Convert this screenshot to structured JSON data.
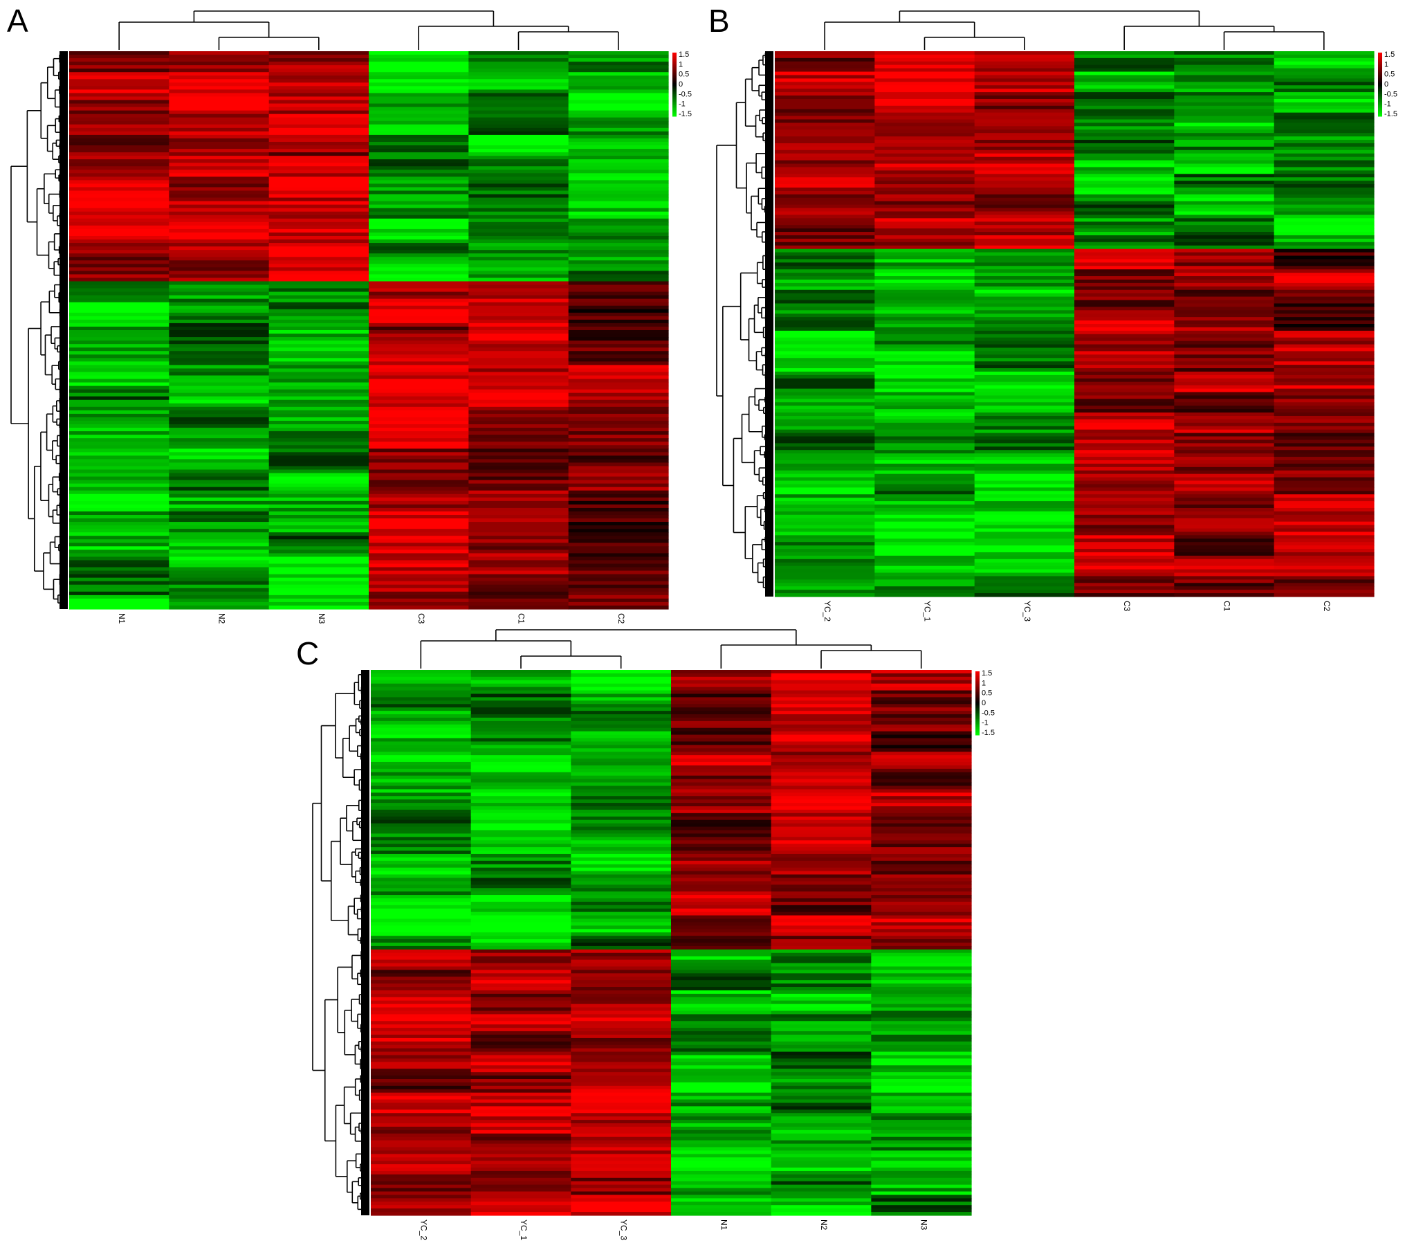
{
  "figure": {
    "colors": {
      "high": "#ff0000",
      "mid": "#000000",
      "low": "#00ff00",
      "tree": "#000000"
    }
  },
  "chart_data": [
    {
      "type": "heatmap",
      "panel_label": "A",
      "columns": [
        "N1",
        "N2",
        "N3",
        "C3",
        "C1",
        "C2"
      ],
      "column_groups": [
        [
          "N1",
          "N2",
          "N3"
        ],
        [
          "C3",
          "C1",
          "C2"
        ]
      ],
      "row_clusters": [
        {
          "fraction": 0.41,
          "mean_values": [
            1.0,
            1.1,
            1.0,
            -1.0,
            -1.0,
            -1.1
          ]
        },
        {
          "fraction": 0.59,
          "mean_values": [
            -1.0,
            -0.9,
            -1.0,
            1.1,
            0.9,
            0.7
          ]
        }
      ],
      "color_scale": {
        "min": -1.5,
        "max": 1.5,
        "tick_labels": [
          "1.5",
          "1",
          "0.5",
          "0",
          "-0.5",
          "-1",
          "-1.5"
        ]
      }
    },
    {
      "type": "heatmap",
      "panel_label": "B",
      "columns": [
        "YC_2",
        "YC_1",
        "YC_3",
        "C3",
        "C1",
        "C2"
      ],
      "column_groups": [
        [
          "YC_2",
          "YC_1",
          "YC_3"
        ],
        [
          "C3",
          "C1",
          "C2"
        ]
      ],
      "row_clusters": [
        {
          "fraction": 0.36,
          "mean_values": [
            0.9,
            1.1,
            1.0,
            -0.9,
            -1.0,
            -1.0
          ]
        },
        {
          "fraction": 0.64,
          "mean_values": [
            -1.0,
            -1.1,
            -0.9,
            1.0,
            0.9,
            0.8
          ]
        }
      ],
      "color_scale": {
        "min": -1.5,
        "max": 1.5,
        "tick_labels": [
          "1.5",
          "1",
          "0.5",
          "0",
          "-0.5",
          "-1",
          "-1.5"
        ]
      }
    },
    {
      "type": "heatmap",
      "panel_label": "C",
      "columns": [
        "YC_2",
        "YC_1",
        "YC_3",
        "N1",
        "N2",
        "N3"
      ],
      "column_groups": [
        [
          "YC_2",
          "YC_1",
          "YC_3"
        ],
        [
          "N1",
          "N2",
          "N3"
        ]
      ],
      "row_clusters": [
        {
          "fraction": 0.51,
          "mean_values": [
            -1.0,
            -1.0,
            -1.0,
            0.9,
            1.0,
            0.8
          ]
        },
        {
          "fraction": 0.49,
          "mean_values": [
            1.0,
            0.9,
            1.1,
            -1.0,
            -0.9,
            -1.0
          ]
        }
      ],
      "color_scale": {
        "min": -1.5,
        "max": 1.5,
        "tick_labels": [
          "1.5",
          "1",
          "0.5",
          "0",
          "-0.5",
          "-1",
          "-1.5"
        ]
      }
    }
  ]
}
